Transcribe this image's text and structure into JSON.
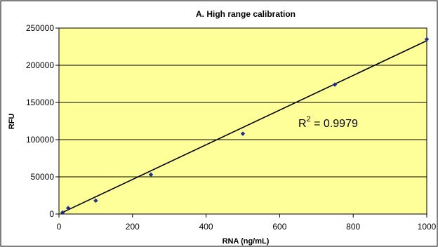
{
  "chart_data": {
    "type": "scatter",
    "title": "A.  High range calibration",
    "xlabel": "RNA (ng/mL)",
    "ylabel": "RFU",
    "xlim": [
      0,
      1000
    ],
    "ylim": [
      0,
      250000
    ],
    "xticks": [
      0,
      200,
      400,
      600,
      800,
      1000
    ],
    "yticks": [
      0,
      50000,
      100000,
      150000,
      200000,
      250000
    ],
    "grid": "horizontal",
    "series": [
      {
        "x": [
          10,
          25,
          100,
          250,
          500,
          750,
          1000
        ],
        "y": [
          2000,
          8000,
          18000,
          53000,
          108000,
          174000,
          235000
        ],
        "color": "#1f2f8f"
      }
    ],
    "trendline": {
      "x": [
        5,
        1000
      ],
      "y": [
        1000,
        233000
      ],
      "color": "#000000"
    },
    "annotation": {
      "label": "R",
      "superscript": "2",
      "value": " = 0.9979"
    },
    "colors": {
      "plot_background": "#ffff99",
      "frame": "#000000",
      "gridline": "#000000",
      "marker": "#1f2f8f"
    }
  }
}
